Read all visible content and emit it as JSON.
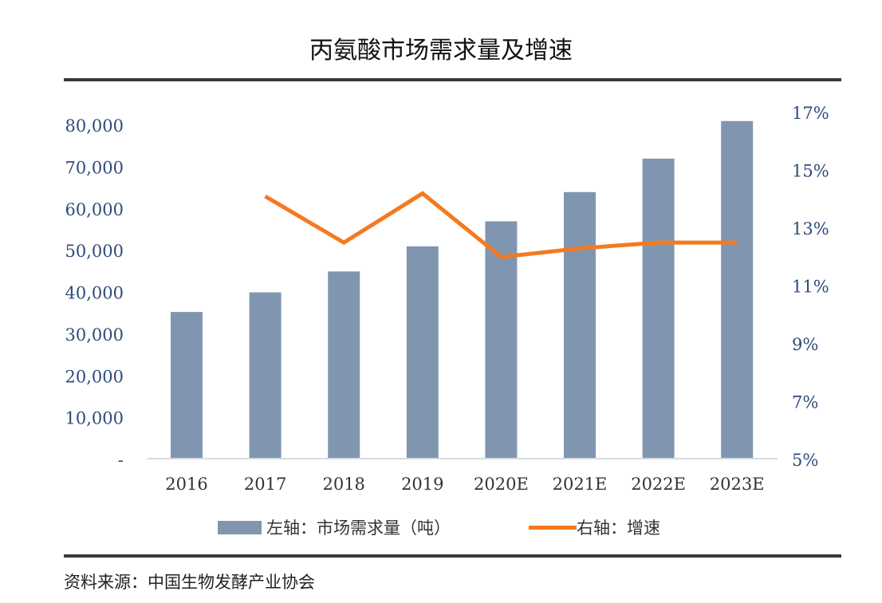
{
  "chart_data": {
    "type": "bar+line",
    "title": "丙氨酸市场需求量及增速",
    "categories": [
      "2016",
      "2017",
      "2018",
      "2019",
      "2020E",
      "2021E",
      "2022E",
      "2023E"
    ],
    "series": [
      {
        "name": "左轴：市场需求量（吨）",
        "type": "bar",
        "axis": "left",
        "color": "#8096b0",
        "values": [
          35300,
          40000,
          45000,
          51000,
          57000,
          64000,
          72000,
          81000
        ]
      },
      {
        "name": "右轴：增速",
        "type": "line",
        "axis": "right",
        "color": "#f47a20",
        "values": [
          null,
          14.1,
          12.5,
          14.2,
          12.0,
          12.3,
          12.5,
          12.5
        ]
      }
    ],
    "left_axis": {
      "ylim": [
        0,
        80000
      ],
      "ticks": [
        "-",
        "10,000",
        "20,000",
        "30,000",
        "40,000",
        "50,000",
        "60,000",
        "70,000",
        "80,000"
      ],
      "tick_values": [
        0,
        10000,
        20000,
        30000,
        40000,
        50000,
        60000,
        70000,
        80000
      ]
    },
    "right_axis": {
      "ylim": [
        5,
        17
      ],
      "ticks": [
        "5%",
        "7%",
        "9%",
        "11%",
        "13%",
        "15%",
        "17%"
      ],
      "tick_values": [
        5,
        7,
        9,
        11,
        13,
        15,
        17
      ]
    },
    "grid": false,
    "legend_position": "bottom",
    "tick_color": "#2e4b7c"
  },
  "source": "资料来源：中国生物发酵产业协会"
}
